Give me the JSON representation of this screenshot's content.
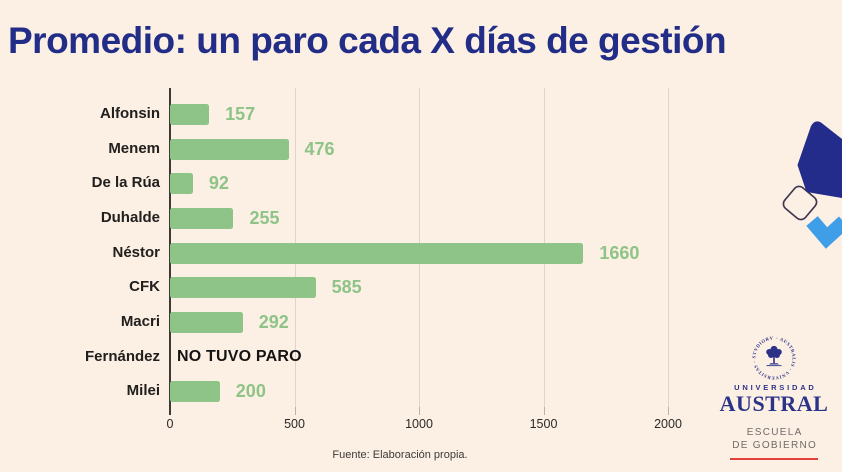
{
  "title": "Promedio: un paro cada X días de gestión",
  "source": "Fuente: Elaboración propia.",
  "colors": {
    "background": "#fcefe3",
    "title_navy": "#222d87",
    "bar_green": "#8ec487",
    "value_green": "#8ec487",
    "no_data_text": "#141414",
    "category_label": "#21201e",
    "gridline": "#dcd5ca",
    "axis": "#3b3a37",
    "logo_navy": "#2b3388",
    "logo_gray": "#6f6b68",
    "logo_red": "#e2403b",
    "decor_navy": "#232c8a",
    "decor_outline": "#3c3550",
    "decor_blue": "#3f9ee8"
  },
  "chart_data": {
    "type": "bar",
    "orientation": "horizontal",
    "title": "Promedio: un paro cada X días de gestión",
    "xlabel": "",
    "ylabel": "",
    "xlim": [
      0,
      2090
    ],
    "grid": "vertical",
    "categories": [
      "Alfonsin",
      "Menem",
      "De la Rúa",
      "Duhalde",
      "Néstor",
      "CFK",
      "Macri",
      "Fernández",
      "Milei"
    ],
    "values": [
      157,
      476,
      92,
      255,
      1660,
      585,
      292,
      null,
      200
    ],
    "rows": [
      {
        "label": "Alfonsin",
        "value": 157,
        "display": "157"
      },
      {
        "label": "Menem",
        "value": 476,
        "display": "476"
      },
      {
        "label": "De la Rúa",
        "value": 92,
        "display": "92"
      },
      {
        "label": "Duhalde",
        "value": 255,
        "display": "255"
      },
      {
        "label": "Néstor",
        "value": 1660,
        "display": "1660"
      },
      {
        "label": "CFK",
        "value": 585,
        "display": "585"
      },
      {
        "label": "Macri",
        "value": 292,
        "display": "292"
      },
      {
        "label": "Fernández",
        "value": null,
        "display": "NO TUVO PARO"
      },
      {
        "label": "Milei",
        "value": 200,
        "display": "200"
      }
    ],
    "no_data_label": "NO TUVO PARO",
    "x_ticks": [
      0,
      500,
      1000,
      1500,
      2000
    ],
    "x_tick_labels": [
      "0",
      "500",
      "1000",
      "1500",
      "2000"
    ]
  },
  "logo": {
    "university_label": "UNIVERSIDAD",
    "university_name": "AUSTRAL",
    "school_line1": "ESCUELA",
    "school_line2": "DE GOBIERNO",
    "seal_text": "· AUSTRALIS · VNIVERSITAS · STVDIORVM"
  },
  "decor": {
    "shapes": [
      "navy-pentagon",
      "outlined-diamond",
      "blue-checkmark"
    ]
  }
}
